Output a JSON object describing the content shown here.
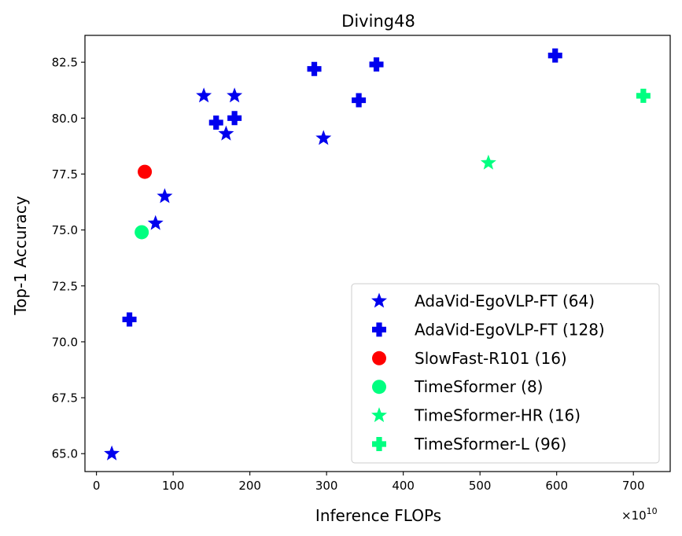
{
  "chart_data": {
    "type": "scatter",
    "title": "Diving48",
    "xlabel": "Inference FLOPs",
    "ylabel": "Top-1 Accuracy",
    "x_offset_label": "×10",
    "x_offset_exponent": "10",
    "xlim": [
      -15,
      748
    ],
    "ylim": [
      64.2,
      83.7
    ],
    "xticks": [
      0,
      100,
      200,
      300,
      400,
      500,
      600,
      700
    ],
    "xtick_labels": [
      "0",
      "100",
      "200",
      "300",
      "400",
      "500",
      "600",
      "700"
    ],
    "yticks": [
      65.0,
      67.5,
      70.0,
      72.5,
      75.0,
      77.5,
      80.0,
      82.5
    ],
    "ytick_labels": [
      "65.0",
      "67.5",
      "70.0",
      "72.5",
      "75.0",
      "77.5",
      "80.0",
      "82.5"
    ],
    "grid": false,
    "legend_position": "bottom-right",
    "series": [
      {
        "name": "AdaVid-EgoVLP-FT (64)",
        "marker": "star",
        "color": "#0000ee",
        "points": [
          [
            20,
            65.0
          ],
          [
            77,
            75.3
          ],
          [
            89,
            76.5
          ],
          [
            140,
            81.0
          ],
          [
            169,
            79.3
          ],
          [
            180,
            81.0
          ],
          [
            296,
            79.1
          ]
        ]
      },
      {
        "name": "AdaVid-EgoVLP-FT (128)",
        "marker": "plus",
        "color": "#0000ee",
        "points": [
          [
            43,
            71.0
          ],
          [
            156,
            79.8
          ],
          [
            180,
            80.0
          ],
          [
            284,
            82.2
          ],
          [
            342,
            80.8
          ],
          [
            365,
            82.4
          ],
          [
            598,
            82.8
          ]
        ]
      },
      {
        "name": "SlowFast-R101 (16)",
        "marker": "circle",
        "color": "#ff0000",
        "points": [
          [
            63,
            77.6
          ]
        ]
      },
      {
        "name": "TimeSformer (8)",
        "marker": "circle",
        "color": "#00ff80",
        "points": [
          [
            59,
            74.9
          ]
        ]
      },
      {
        "name": "TimeSformer-HR (16)",
        "marker": "star",
        "color": "#00ff80",
        "points": [
          [
            511,
            78.0
          ]
        ]
      },
      {
        "name": "TimeSformer-L (96)",
        "marker": "plus",
        "color": "#00ff80",
        "points": [
          [
            713,
            81.0
          ]
        ]
      }
    ]
  }
}
